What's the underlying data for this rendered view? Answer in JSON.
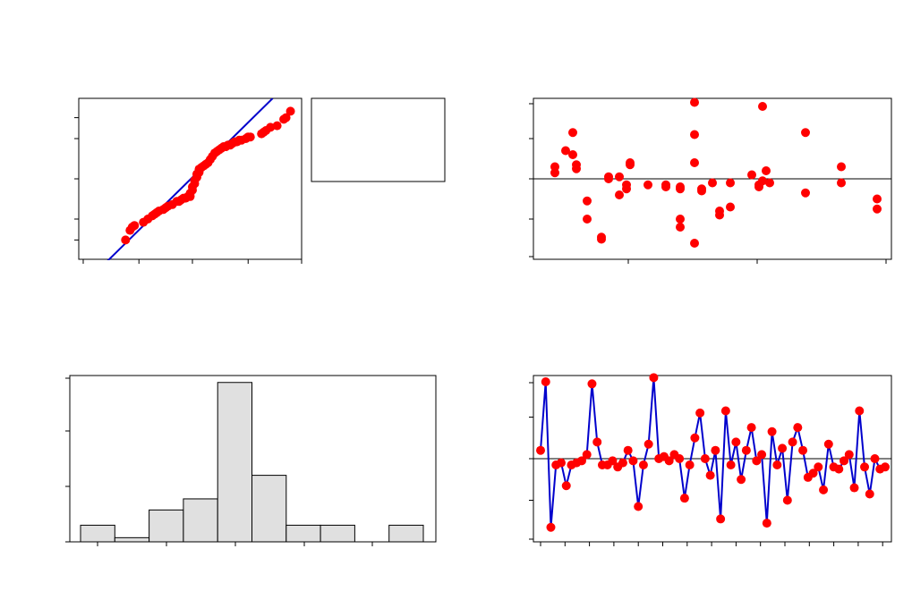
{
  "colors": {
    "points": "#ff0000",
    "line": "#0000cc",
    "bars": "#e0e0e0",
    "axes": "#000000"
  },
  "chart_data": [
    {
      "type": "scatter",
      "subtype": "normal-probability-plot",
      "title": "",
      "xlabel": "",
      "ylabel": "",
      "xlim": [
        0,
        100
      ],
      "ylim": [
        0,
        100
      ],
      "fit_line": {
        "from": [
          10,
          -5
        ],
        "to": [
          87,
          100
        ]
      },
      "points": [
        [
          21,
          12
        ],
        [
          23,
          18
        ],
        [
          24,
          20
        ],
        [
          25,
          21
        ],
        [
          29,
          23
        ],
        [
          31,
          25
        ],
        [
          33,
          27
        ],
        [
          34,
          28
        ],
        [
          35,
          29
        ],
        [
          36,
          30
        ],
        [
          38,
          31
        ],
        [
          39,
          32
        ],
        [
          40,
          33
        ],
        [
          42,
          34
        ],
        [
          44,
          36
        ],
        [
          45,
          36
        ],
        [
          46,
          37
        ],
        [
          47,
          38
        ],
        [
          48,
          38
        ],
        [
          49,
          39
        ],
        [
          50,
          39
        ],
        [
          50,
          41
        ],
        [
          51,
          43
        ],
        [
          51,
          45
        ],
        [
          52,
          47
        ],
        [
          52,
          49
        ],
        [
          53,
          51
        ],
        [
          53,
          53
        ],
        [
          54,
          54
        ],
        [
          54,
          56
        ],
        [
          55,
          57
        ],
        [
          56,
          58
        ],
        [
          57,
          59
        ],
        [
          58,
          60
        ],
        [
          59,
          62
        ],
        [
          60,
          64
        ],
        [
          61,
          66
        ],
        [
          62,
          67
        ],
        [
          63,
          68
        ],
        [
          64,
          69
        ],
        [
          65,
          70
        ],
        [
          66,
          70
        ],
        [
          67,
          71
        ],
        [
          68,
          71
        ],
        [
          69,
          72
        ],
        [
          70,
          73
        ],
        [
          71,
          73
        ],
        [
          72,
          74
        ],
        [
          73,
          74
        ],
        [
          75,
          75
        ],
        [
          76,
          76
        ],
        [
          77,
          76
        ],
        [
          82,
          78
        ],
        [
          83,
          79
        ],
        [
          84,
          80
        ],
        [
          86,
          82
        ],
        [
          89,
          83
        ],
        [
          92,
          87
        ],
        [
          93,
          88
        ],
        [
          95,
          92
        ]
      ]
    },
    {
      "type": "scatter",
      "subtype": "residuals-vs-fitted",
      "title": "",
      "xlabel": "",
      "ylabel": "",
      "xlim": [
        0,
        100
      ],
      "ylim": [
        -2,
        2
      ],
      "reference_line": 0,
      "points": [
        [
          6,
          0.3
        ],
        [
          6,
          0.15
        ],
        [
          9,
          0.7
        ],
        [
          11,
          0.6
        ],
        [
          11,
          1.15
        ],
        [
          12,
          0.35
        ],
        [
          12,
          0.25
        ],
        [
          15,
          -0.55
        ],
        [
          15,
          -1.0
        ],
        [
          19,
          -1.5
        ],
        [
          19,
          -1.45
        ],
        [
          21,
          0.05
        ],
        [
          21,
          0.0
        ],
        [
          24,
          -0.4
        ],
        [
          24,
          0.05
        ],
        [
          26,
          -0.15
        ],
        [
          26,
          -0.25
        ],
        [
          27,
          0.35
        ],
        [
          27,
          0.4
        ],
        [
          32,
          -0.15
        ],
        [
          37,
          -0.15
        ],
        [
          37,
          -0.2
        ],
        [
          41,
          -0.2
        ],
        [
          41,
          -0.25
        ],
        [
          41,
          -1.0
        ],
        [
          41,
          -1.2
        ],
        [
          45,
          1.9
        ],
        [
          45,
          1.1
        ],
        [
          45,
          0.4
        ],
        [
          45,
          -1.6
        ],
        [
          47,
          -0.3
        ],
        [
          47,
          -0.25
        ],
        [
          50,
          -0.1
        ],
        [
          52,
          -0.8
        ],
        [
          52,
          -0.9
        ],
        [
          55,
          -0.7
        ],
        [
          55,
          -0.1
        ],
        [
          61,
          0.1
        ],
        [
          63,
          -0.15
        ],
        [
          63,
          -0.2
        ],
        [
          64,
          -0.05
        ],
        [
          64,
          1.8
        ],
        [
          65,
          0.2
        ],
        [
          66,
          -0.1
        ],
        [
          76,
          1.15
        ],
        [
          76,
          -0.35
        ],
        [
          86,
          0.3
        ],
        [
          86,
          -0.1
        ],
        [
          96,
          -0.5
        ],
        [
          96,
          -0.75
        ]
      ]
    },
    {
      "type": "bar",
      "subtype": "histogram",
      "title": "",
      "xlabel": "",
      "ylabel": "",
      "ylim": [
        0,
        12
      ],
      "values": [
        1.2,
        0.3,
        2.3,
        3.1,
        11.5,
        4.8,
        1.2,
        1.2,
        0,
        1.2
      ]
    },
    {
      "type": "line",
      "subtype": "residuals-vs-order",
      "title": "",
      "xlabel": "",
      "ylabel": "",
      "xlim": [
        1,
        70
      ],
      "ylim": [
        -2,
        2
      ],
      "reference_line": 0,
      "values": [
        0.2,
        1.85,
        -1.65,
        -0.15,
        -0.1,
        -0.65,
        -0.15,
        -0.1,
        -0.05,
        0.1,
        1.8,
        0.4,
        -0.15,
        -0.15,
        -0.05,
        -0.2,
        -0.1,
        0.2,
        -0.05,
        -1.15,
        -0.15,
        0.35,
        1.95,
        0.0,
        0.05,
        -0.05,
        0.1,
        0.0,
        -0.95,
        -0.15,
        0.5,
        1.1,
        0.0,
        -0.4,
        0.2,
        -1.45,
        1.15,
        -0.15,
        0.4,
        -0.5,
        0.2,
        0.75,
        -0.05,
        0.1,
        -1.55,
        0.65,
        -0.15,
        0.25,
        -1.0,
        0.4,
        0.75,
        0.2,
        -0.45,
        -0.35,
        -0.2,
        -0.75,
        0.35,
        -0.2,
        -0.25,
        -0.05,
        0.1,
        -0.7,
        1.15,
        -0.2,
        -0.85,
        0.0,
        -0.25,
        -0.2
      ]
    }
  ]
}
